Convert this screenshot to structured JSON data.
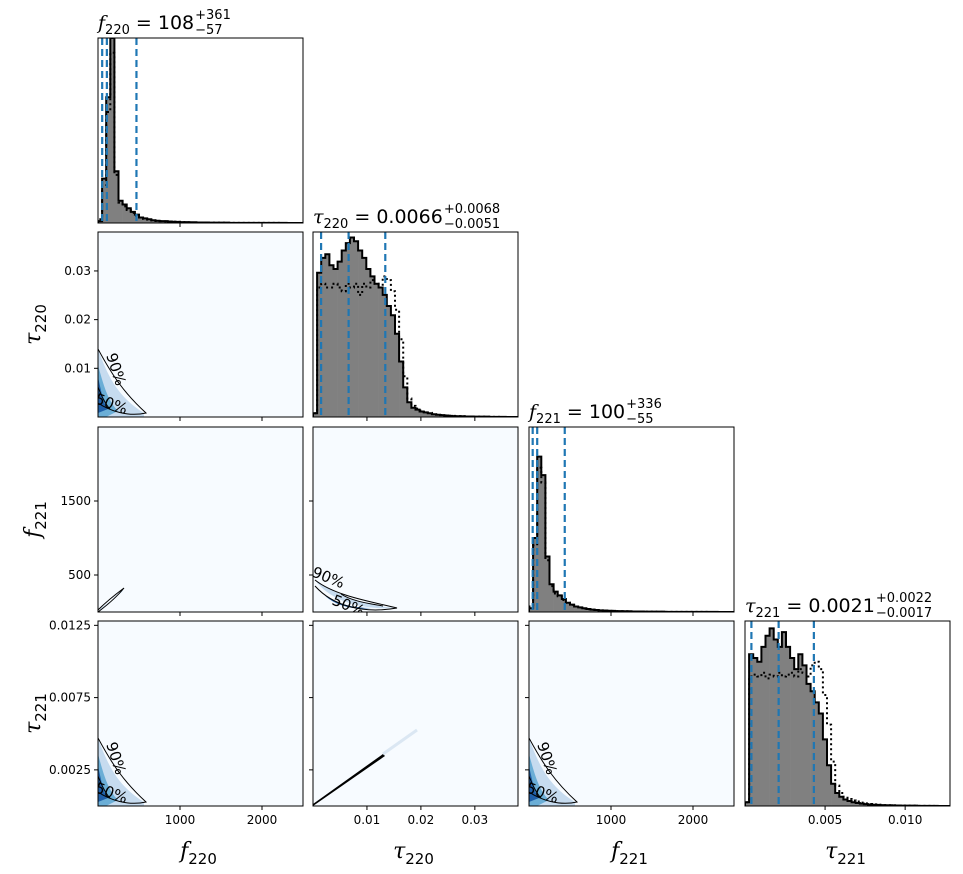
{
  "chart_data": {
    "type": "corner",
    "parameters": [
      {
        "name": "f220",
        "symbol": "f",
        "sub": "220",
        "range": [
          0,
          2500
        ],
        "ticks": [
          1000,
          2000
        ],
        "tick_labels": [
          "1000",
          "2000"
        ],
        "median": "108",
        "upper": "+361",
        "lower": "−57",
        "quantiles": [
          51,
          108,
          469
        ]
      },
      {
        "name": "tau220",
        "symbol": "τ",
        "sub": "220",
        "range": [
          0,
          0.038
        ],
        "ticks": [
          0.01,
          0.02,
          0.03
        ],
        "tick_labels": [
          "0.01",
          "0.02",
          "0.03"
        ],
        "median": "0.0066",
        "upper": "+0.0068",
        "lower": "−0.0051",
        "quantiles": [
          0.0015,
          0.0066,
          0.0134
        ]
      },
      {
        "name": "f221",
        "symbol": "f",
        "sub": "221",
        "range": [
          0,
          2500
        ],
        "ticks": [
          500,
          1500
        ],
        "tick_labels": [
          "500",
          "1500"
        ],
        "x_ticks": [
          1000,
          2000
        ],
        "x_tick_labels": [
          "1000",
          "2000"
        ],
        "median": "100",
        "upper": "+336",
        "lower": "−55",
        "quantiles": [
          45,
          100,
          436
        ]
      },
      {
        "name": "tau221",
        "symbol": "τ",
        "sub": "221",
        "range": [
          0,
          0.0128
        ],
        "ticks": [
          0.0025,
          0.0075,
          0.0125
        ],
        "tick_labels": [
          "0.0025",
          "0.0075",
          "0.0125"
        ],
        "x_ticks": [
          0.005,
          0.01
        ],
        "x_tick_labels": [
          "0.005",
          "0.010"
        ],
        "median": "0.0021",
        "upper": "+0.0022",
        "lower": "−0.0017",
        "quantiles": [
          0.0004,
          0.0021,
          0.0043
        ]
      }
    ],
    "title_eq": "=",
    "histograms": [
      {
        "param": "f220",
        "solid": [
          0.01,
          0.24,
          0.68,
          1.0,
          0.28,
          0.12,
          0.1,
          0.08,
          0.06,
          0.045,
          0.03,
          0.025,
          0.02,
          0.015,
          0.012,
          0.01,
          0.01,
          0.008,
          0.007,
          0.006,
          0.005,
          0.005,
          0.004,
          0.004,
          0.003,
          0.003,
          0.003,
          0.002,
          0.002,
          0.002,
          0.002,
          0.002,
          0.001,
          0.001,
          0.001,
          0.001,
          0.001,
          0.001,
          0.001,
          0.001,
          0.001,
          0.001,
          0.001,
          0.001,
          0.001,
          0.001,
          0.0,
          0.0,
          0.0,
          0.0
        ],
        "dotted": [
          0.02,
          0.2,
          0.6,
          0.92,
          0.26,
          0.11,
          0.09,
          0.07,
          0.055,
          0.04,
          0.03,
          0.022,
          0.018,
          0.014,
          0.011,
          0.01,
          0.009,
          0.008,
          0.007,
          0.006,
          0.005,
          0.004,
          0.004,
          0.003,
          0.003,
          0.003,
          0.002,
          0.002,
          0.002,
          0.002,
          0.002,
          0.001,
          0.001,
          0.001,
          0.001,
          0.001,
          0.001,
          0.001,
          0.001,
          0.001,
          0.001,
          0.001,
          0.001,
          0.001,
          0.001,
          0.0,
          0.0,
          0.0,
          0.0,
          0.0
        ]
      },
      {
        "param": "tau220",
        "solid": [
          0.02,
          0.78,
          0.86,
          0.88,
          0.82,
          0.8,
          0.84,
          0.9,
          0.94,
          0.97,
          0.95,
          0.9,
          0.86,
          0.8,
          0.76,
          0.72,
          0.7,
          0.66,
          0.6,
          0.55,
          0.45,
          0.3,
          0.16,
          0.08,
          0.05,
          0.04,
          0.03,
          0.025,
          0.02,
          0.015,
          0.012,
          0.01,
          0.008,
          0.006,
          0.005,
          0.004,
          0.004,
          0.003,
          0.003,
          0.002,
          0.002,
          0.002,
          0.002,
          0.001,
          0.001,
          0.001,
          0.001,
          0.0,
          0.0,
          0.0
        ],
        "dotted": [
          0.02,
          0.7,
          0.72,
          0.7,
          0.7,
          0.72,
          0.7,
          0.68,
          0.72,
          0.7,
          0.72,
          0.66,
          0.72,
          0.7,
          0.74,
          0.72,
          0.7,
          0.76,
          0.74,
          0.68,
          0.58,
          0.42,
          0.22,
          0.1,
          0.06,
          0.045,
          0.035,
          0.028,
          0.022,
          0.018,
          0.014,
          0.011,
          0.009,
          0.007,
          0.006,
          0.005,
          0.004,
          0.003,
          0.003,
          0.002,
          0.002,
          0.002,
          0.001,
          0.001,
          0.001,
          0.001,
          0.0,
          0.0,
          0.0,
          0.0
        ]
      },
      {
        "param": "f221",
        "solid": [
          0.02,
          0.4,
          0.84,
          0.74,
          0.3,
          0.15,
          0.11,
          0.09,
          0.07,
          0.05,
          0.04,
          0.03,
          0.025,
          0.02,
          0.016,
          0.013,
          0.011,
          0.009,
          0.008,
          0.007,
          0.006,
          0.005,
          0.005,
          0.004,
          0.004,
          0.003,
          0.003,
          0.003,
          0.002,
          0.002,
          0.002,
          0.002,
          0.002,
          0.001,
          0.001,
          0.001,
          0.001,
          0.001,
          0.001,
          0.001,
          0.001,
          0.001,
          0.001,
          0.001,
          0.001,
          0.001,
          0.0,
          0.0,
          0.0,
          0.0
        ],
        "dotted": [
          0.03,
          0.36,
          0.78,
          0.7,
          0.28,
          0.14,
          0.1,
          0.085,
          0.065,
          0.05,
          0.038,
          0.03,
          0.024,
          0.019,
          0.015,
          0.012,
          0.01,
          0.009,
          0.008,
          0.007,
          0.006,
          0.005,
          0.004,
          0.004,
          0.003,
          0.003,
          0.003,
          0.002,
          0.002,
          0.002,
          0.002,
          0.001,
          0.001,
          0.001,
          0.001,
          0.001,
          0.001,
          0.001,
          0.001,
          0.001,
          0.001,
          0.001,
          0.001,
          0.001,
          0.0,
          0.0,
          0.0,
          0.0,
          0.0,
          0.0
        ]
      },
      {
        "param": "tau221",
        "solid": [
          0.02,
          0.82,
          0.8,
          0.78,
          0.86,
          0.92,
          0.96,
          0.9,
          0.86,
          0.94,
          0.86,
          0.8,
          0.74,
          0.82,
          0.76,
          0.66,
          0.62,
          0.56,
          0.5,
          0.36,
          0.22,
          0.12,
          0.07,
          0.05,
          0.035,
          0.027,
          0.02,
          0.016,
          0.013,
          0.01,
          0.008,
          0.007,
          0.006,
          0.005,
          0.004,
          0.004,
          0.003,
          0.003,
          0.002,
          0.002,
          0.002,
          0.002,
          0.001,
          0.001,
          0.001,
          0.001,
          0.001,
          0.0,
          0.0,
          0.0
        ],
        "dotted": [
          0.02,
          0.7,
          0.71,
          0.7,
          0.72,
          0.69,
          0.71,
          0.7,
          0.72,
          0.7,
          0.71,
          0.72,
          0.7,
          0.74,
          0.72,
          0.7,
          0.76,
          0.78,
          0.74,
          0.6,
          0.44,
          0.24,
          0.11,
          0.07,
          0.05,
          0.038,
          0.03,
          0.024,
          0.018,
          0.014,
          0.011,
          0.009,
          0.007,
          0.006,
          0.005,
          0.004,
          0.004,
          0.003,
          0.003,
          0.002,
          0.002,
          0.002,
          0.001,
          0.001,
          0.001,
          0.001,
          0.0,
          0.0,
          0.0,
          0.0
        ]
      }
    ],
    "kde_panels": [
      {
        "x": "f220",
        "y": "tau220",
        "shape": "corner-blob",
        "labels": [
          "90%",
          "50%"
        ]
      },
      {
        "x": "f220",
        "y": "f221",
        "shape": "diagonal-thin",
        "labels": []
      },
      {
        "x": "tau220",
        "y": "f221",
        "shape": "tau-blob",
        "labels": [
          "90%",
          "50%"
        ]
      },
      {
        "x": "f220",
        "y": "tau221",
        "shape": "corner-blob",
        "labels": [
          "90%",
          "50%"
        ]
      },
      {
        "x": "tau220",
        "y": "tau221",
        "shape": "diagonal-line",
        "labels": []
      },
      {
        "x": "f221",
        "y": "tau221",
        "shape": "corner-blob",
        "labels": [
          "90%",
          "50%"
        ]
      }
    ],
    "colors": {
      "hist_fill": "#808080",
      "quantile_line": "#1f77b4",
      "kde_background": "#f7fbff",
      "kde_dark": "#1f5fa8",
      "kde_light": "#c6dbef"
    }
  }
}
